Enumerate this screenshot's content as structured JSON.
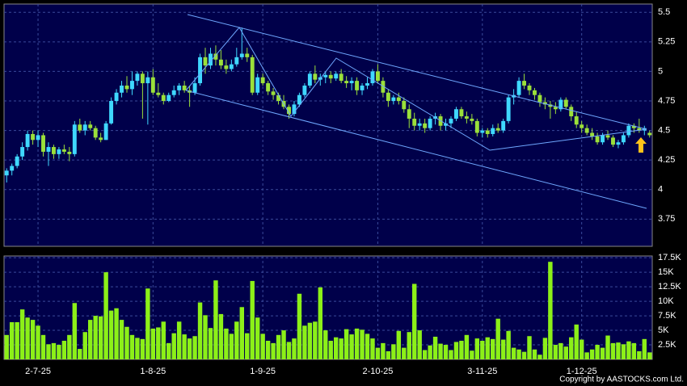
{
  "chart_data": [
    {
      "type": "candlestick",
      "up_color": "#3fd8ff",
      "down_color": "#9be03a",
      "grid": true,
      "ylim": [
        3.52,
        5.57
      ],
      "yticks": [
        3.75,
        4,
        4.25,
        4.5,
        4.75,
        5,
        5.25,
        5.5
      ],
      "ohlc": [
        [
          4.12,
          4.18,
          4.06,
          4.16
        ],
        [
          4.16,
          4.22,
          4.12,
          4.2
        ],
        [
          4.2,
          4.3,
          4.18,
          4.28
        ],
        [
          4.28,
          4.4,
          4.25,
          4.36
        ],
        [
          4.36,
          4.5,
          4.33,
          4.47
        ],
        [
          4.47,
          4.5,
          4.38,
          4.42
        ],
        [
          4.42,
          4.5,
          4.36,
          4.46
        ],
        [
          4.46,
          4.48,
          4.28,
          4.32
        ],
        [
          4.32,
          4.4,
          4.2,
          4.36
        ],
        [
          4.36,
          4.38,
          4.26,
          4.3
        ],
        [
          4.3,
          4.36,
          4.26,
          4.34
        ],
        [
          4.34,
          4.38,
          4.3,
          4.32
        ],
        [
          4.32,
          4.36,
          4.24,
          4.3
        ],
        [
          4.3,
          4.58,
          4.28,
          4.55
        ],
        [
          4.55,
          4.6,
          4.48,
          4.5
        ],
        [
          4.5,
          4.58,
          4.46,
          4.55
        ],
        [
          4.55,
          4.58,
          4.5,
          4.52
        ],
        [
          4.52,
          4.54,
          4.42,
          4.44
        ],
        [
          4.44,
          4.48,
          4.4,
          4.42
        ],
        [
          4.42,
          4.58,
          4.42,
          4.56
        ],
        [
          4.56,
          4.78,
          4.55,
          4.75
        ],
        [
          4.75,
          4.85,
          4.72,
          4.82
        ],
        [
          4.82,
          4.92,
          4.78,
          4.88
        ],
        [
          4.88,
          4.96,
          4.82,
          4.85
        ],
        [
          4.85,
          5.0,
          4.8,
          4.92
        ],
        [
          4.92,
          5.0,
          4.88,
          4.98
        ],
        [
          4.98,
          5.0,
          4.6,
          4.9
        ],
        [
          4.9,
          5.0,
          4.55,
          4.95
        ],
        [
          4.95,
          5.02,
          4.8,
          4.82
        ],
        [
          4.82,
          4.9,
          4.78,
          4.8
        ],
        [
          4.8,
          4.82,
          4.72,
          4.75
        ],
        [
          4.75,
          4.82,
          4.74,
          4.8
        ],
        [
          4.8,
          4.88,
          4.78,
          4.84
        ],
        [
          4.84,
          4.9,
          4.8,
          4.88
        ],
        [
          4.88,
          4.92,
          4.82,
          4.84
        ],
        [
          4.84,
          4.88,
          4.7,
          4.82
        ],
        [
          4.82,
          4.95,
          4.8,
          4.9
        ],
        [
          4.9,
          5.15,
          4.88,
          5.12
        ],
        [
          5.12,
          5.2,
          4.98,
          5.05
        ],
        [
          5.05,
          5.2,
          5.02,
          5.15
        ],
        [
          5.15,
          5.22,
          5.05,
          5.1
        ],
        [
          5.1,
          5.18,
          5.02,
          5.05
        ],
        [
          5.05,
          5.1,
          4.98,
          5.02
        ],
        [
          5.02,
          5.1,
          5.0,
          5.06
        ],
        [
          5.06,
          5.2,
          5.04,
          5.12
        ],
        [
          5.12,
          5.37,
          5.1,
          5.15
        ],
        [
          5.15,
          5.2,
          5.08,
          5.12
        ],
        [
          5.12,
          5.14,
          4.8,
          4.82
        ],
        [
          4.82,
          4.98,
          4.8,
          4.95
        ],
        [
          4.95,
          4.98,
          4.88,
          4.9
        ],
        [
          4.9,
          4.92,
          4.8,
          4.83
        ],
        [
          4.83,
          4.86,
          4.76,
          4.8
        ],
        [
          4.8,
          4.82,
          4.72,
          4.75
        ],
        [
          4.75,
          4.8,
          4.68,
          4.7
        ],
        [
          4.7,
          4.72,
          4.6,
          4.64
        ],
        [
          4.64,
          4.75,
          4.62,
          4.72
        ],
        [
          4.72,
          4.82,
          4.7,
          4.8
        ],
        [
          4.8,
          4.9,
          4.78,
          4.88
        ],
        [
          4.88,
          5.0,
          4.86,
          4.98
        ],
        [
          4.98,
          5.05,
          4.9,
          4.93
        ],
        [
          4.93,
          4.98,
          4.88,
          4.95
        ],
        [
          4.95,
          5.0,
          4.9,
          4.97
        ],
        [
          4.97,
          5.0,
          4.9,
          4.94
        ],
        [
          4.94,
          5.0,
          4.92,
          4.98
        ],
        [
          4.98,
          5.02,
          4.9,
          4.92
        ],
        [
          4.92,
          4.96,
          4.86,
          4.9
        ],
        [
          4.9,
          4.95,
          4.84,
          4.92
        ],
        [
          4.92,
          4.95,
          4.8,
          4.84
        ],
        [
          4.84,
          4.9,
          4.8,
          4.88
        ],
        [
          4.88,
          4.95,
          4.85,
          4.9
        ],
        [
          4.9,
          5.02,
          4.88,
          5.0
        ],
        [
          5.0,
          5.06,
          4.9,
          4.92
        ],
        [
          4.92,
          4.95,
          4.78,
          4.82
        ],
        [
          4.82,
          4.85,
          4.7,
          4.75
        ],
        [
          4.75,
          4.8,
          4.72,
          4.78
        ],
        [
          4.78,
          4.82,
          4.72,
          4.75
        ],
        [
          4.75,
          4.78,
          4.65,
          4.68
        ],
        [
          4.68,
          4.72,
          4.52,
          4.6
        ],
        [
          4.6,
          4.65,
          4.5,
          4.54
        ],
        [
          4.54,
          4.6,
          4.5,
          4.56
        ],
        [
          4.56,
          4.6,
          4.48,
          4.52
        ],
        [
          4.52,
          4.62,
          4.5,
          4.6
        ],
        [
          4.6,
          4.65,
          4.55,
          4.62
        ],
        [
          4.62,
          4.64,
          4.5,
          4.54
        ],
        [
          4.54,
          4.6,
          4.5,
          4.56
        ],
        [
          4.56,
          4.62,
          4.52,
          4.6
        ],
        [
          4.6,
          4.7,
          4.58,
          4.68
        ],
        [
          4.68,
          4.7,
          4.6,
          4.62
        ],
        [
          4.62,
          4.66,
          4.56,
          4.6
        ],
        [
          4.6,
          4.64,
          4.55,
          4.58
        ],
        [
          4.58,
          4.6,
          4.45,
          4.48
        ],
        [
          4.48,
          4.52,
          4.44,
          4.5
        ],
        [
          4.5,
          4.52,
          4.44,
          4.47
        ],
        [
          4.47,
          4.55,
          4.45,
          4.52
        ],
        [
          4.52,
          4.56,
          4.48,
          4.5
        ],
        [
          4.5,
          4.6,
          4.48,
          4.58
        ],
        [
          4.58,
          4.8,
          4.56,
          4.78
        ],
        [
          4.78,
          4.85,
          4.72,
          4.8
        ],
        [
          4.8,
          4.95,
          4.78,
          4.92
        ],
        [
          4.92,
          4.98,
          4.85,
          4.88
        ],
        [
          4.88,
          4.9,
          4.8,
          4.84
        ],
        [
          4.84,
          4.86,
          4.76,
          4.8
        ],
        [
          4.8,
          4.82,
          4.7,
          4.74
        ],
        [
          4.74,
          4.78,
          4.68,
          4.72
        ],
        [
          4.72,
          4.75,
          4.6,
          4.7
        ],
        [
          4.7,
          4.74,
          4.64,
          4.68
        ],
        [
          4.68,
          4.78,
          4.66,
          4.76
        ],
        [
          4.76,
          4.78,
          4.68,
          4.7
        ],
        [
          4.7,
          4.72,
          4.58,
          4.62
        ],
        [
          4.62,
          4.66,
          4.52,
          4.55
        ],
        [
          4.55,
          4.58,
          4.48,
          4.52
        ],
        [
          4.52,
          4.55,
          4.46,
          4.48
        ],
        [
          4.48,
          4.52,
          4.42,
          4.45
        ],
        [
          4.45,
          4.48,
          4.38,
          4.4
        ],
        [
          4.4,
          4.48,
          4.38,
          4.46
        ],
        [
          4.46,
          4.5,
          4.42,
          4.44
        ],
        [
          4.44,
          4.46,
          4.36,
          4.38
        ],
        [
          4.38,
          4.42,
          4.35,
          4.4
        ],
        [
          4.4,
          4.48,
          4.38,
          4.46
        ],
        [
          4.46,
          4.56,
          4.44,
          4.54
        ],
        [
          4.54,
          4.56,
          4.48,
          4.52
        ],
        [
          4.52,
          4.6,
          4.48,
          4.5
        ],
        [
          4.5,
          4.54,
          4.46,
          4.52
        ],
        [
          4.48,
          4.5,
          4.44,
          4.46
        ]
      ]
    },
    {
      "type": "bar",
      "color": "#8cf018",
      "grid": true,
      "ylim": [
        0,
        17800
      ],
      "yticks": [
        {
          "value": 2500,
          "label": "2.5K"
        },
        {
          "value": 5000,
          "label": "5K"
        },
        {
          "value": 7500,
          "label": "7.5K"
        },
        {
          "value": 10000,
          "label": "10K"
        },
        {
          "value": 12500,
          "label": "12.5K"
        },
        {
          "value": 15000,
          "label": "15K"
        },
        {
          "value": 17500,
          "label": "17.5K"
        }
      ],
      "categories": [
        null,
        null,
        null,
        null,
        null,
        null,
        "2-7-25",
        null,
        null,
        null,
        null,
        null,
        null,
        null,
        null,
        null,
        null,
        null,
        null,
        null,
        null,
        null,
        null,
        null,
        null,
        null,
        null,
        null,
        "1-8-25",
        null,
        null,
        null,
        null,
        null,
        null,
        null,
        null,
        null,
        null,
        null,
        null,
        null,
        null,
        null,
        null,
        null,
        null,
        null,
        null,
        "1-9-25",
        null,
        null,
        null,
        null,
        null,
        null,
        null,
        null,
        null,
        null,
        null,
        null,
        null,
        null,
        null,
        null,
        null,
        null,
        null,
        null,
        null,
        "2-10-25",
        null,
        null,
        null,
        null,
        null,
        null,
        null,
        null,
        null,
        null,
        null,
        null,
        null,
        null,
        null,
        null,
        null,
        null,
        null,
        "3-11-25",
        null,
        null,
        null,
        null,
        null,
        null,
        null,
        null,
        null,
        null,
        null,
        null,
        null,
        null,
        null,
        null,
        null,
        null,
        "1-12-25",
        null,
        null,
        null,
        null,
        null,
        null,
        null,
        null,
        null,
        null,
        null,
        null,
        null
      ],
      "values": [
        4200,
        6400,
        6400,
        8600,
        7200,
        6800,
        5800,
        4200,
        2600,
        2800,
        2500,
        3200,
        4200,
        9700,
        1800,
        4700,
        6800,
        7500,
        7400,
        15000,
        8400,
        8800,
        6800,
        5600,
        4200,
        3700,
        3500,
        12200,
        5300,
        5500,
        6500,
        2800,
        4500,
        6500,
        4300,
        3600,
        4000,
        9800,
        7600,
        5400,
        13600,
        7800,
        5300,
        4400,
        6500,
        9000,
        4500,
        13500,
        7200,
        4400,
        3200,
        2800,
        4200,
        5000,
        3000,
        3600,
        11300,
        5800,
        6300,
        6500,
        12400,
        5000,
        3200,
        3800,
        3600,
        5200,
        4300,
        5300,
        5100,
        4400,
        3600,
        2000,
        2800,
        1400,
        2600,
        4900,
        2000,
        4700,
        13000,
        5000,
        1600,
        2400,
        3900,
        2700,
        2500,
        1600,
        3000,
        3200,
        4200,
        1500,
        3600,
        3200,
        3800,
        3500,
        7000,
        3400,
        4900,
        2000,
        1700,
        1300,
        4000,
        1700,
        800,
        3700,
        16800,
        2500,
        2800,
        2200,
        3800,
        6000,
        3400,
        1200,
        1700,
        2500,
        2000,
        4100,
        2800,
        2900,
        2600,
        3100,
        2800,
        1400,
        3500,
        1200
      ]
    },
    {
      "type": "note",
      "copyright": "Copyright by AASTOCKS.com Ltd."
    }
  ]
}
